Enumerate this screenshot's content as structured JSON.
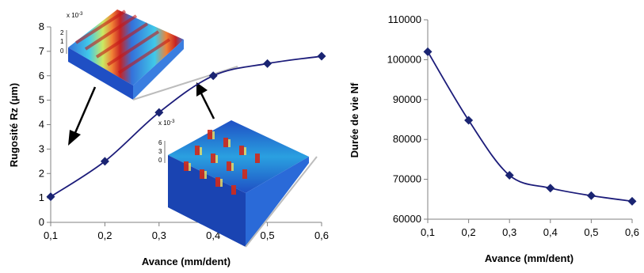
{
  "chart_data": [
    {
      "type": "line",
      "xlabel": "Avance (mm/dent)",
      "ylabel": "Rugosité Rz (µm)",
      "x": [
        0.1,
        0.2,
        0.3,
        0.4,
        0.5,
        0.6
      ],
      "xlim": [
        0.1,
        0.6
      ],
      "x_ticks": [
        "0,1",
        "0,2",
        "0,3",
        "0,4",
        "0,5",
        "0,6"
      ],
      "ylim": [
        0,
        8
      ],
      "y_ticks": [
        "0",
        "1",
        "2",
        "3",
        "4",
        "5",
        "6",
        "7",
        "8"
      ],
      "series": [
        {
          "values": [
            1.05,
            2.5,
            4.5,
            6.0,
            6.5,
            6.8
          ]
        }
      ],
      "grid": false,
      "colors": {
        "line": "#1c1c7a",
        "marker": "#1a2472"
      },
      "insets": [
        {
          "scale_label": "x 10",
          "scale_exp": "-3",
          "z_ticks": [
            "2",
            "1",
            "0"
          ]
        },
        {
          "scale_label": "x 10",
          "scale_exp": "-3",
          "z_ticks": [
            "6",
            "3",
            "0"
          ]
        }
      ]
    },
    {
      "type": "line",
      "xlabel": "Avance (mm/dent)",
      "ylabel": "Durée de vie Nf",
      "x": [
        0.1,
        0.2,
        0.3,
        0.4,
        0.5,
        0.6
      ],
      "xlim": [
        0.1,
        0.6
      ],
      "x_ticks": [
        "0,1",
        "0,2",
        "0,3",
        "0,4",
        "0,5",
        "0,6"
      ],
      "ylim": [
        60000,
        110000
      ],
      "y_ticks": [
        "60000",
        "70000",
        "80000",
        "90000",
        "100000",
        "110000"
      ],
      "series": [
        {
          "values": [
            102000,
            84800,
            71000,
            67800,
            65900,
            64500
          ]
        }
      ],
      "grid": false,
      "colors": {
        "line": "#1c1c7a",
        "marker": "#1a2472"
      }
    }
  ]
}
